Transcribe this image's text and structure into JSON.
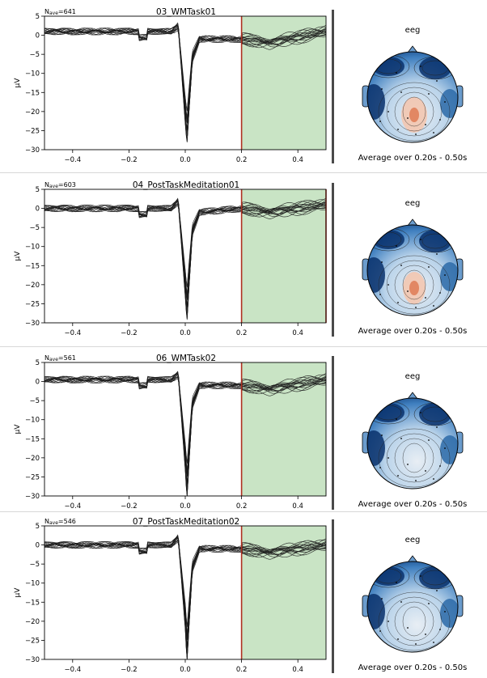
{
  "chart_data": [
    {
      "type": "line",
      "title": "03_WMTask01",
      "nave_prefix": "N",
      "nave_sub": "ave",
      "nave_value": "=641",
      "ylabel": "µV",
      "xlim": [
        -0.5,
        0.5
      ],
      "ylim": [
        -30,
        5
      ],
      "xticks": [
        -0.4,
        -0.2,
        0.0,
        0.2,
        0.4
      ],
      "xtick_labels": [
        "−0.4",
        "−0.2",
        "0.0",
        "0.2",
        "0.4"
      ],
      "yticks": [
        5,
        0,
        -5,
        -10,
        -15,
        -20,
        -25,
        -30
      ],
      "ytick_labels": [
        "5",
        "0",
        "−5",
        "−10",
        "−15",
        "−20",
        "−25",
        "−30"
      ],
      "shaded_window": [
        0.2,
        0.5
      ],
      "shade_color": "#c9e4c5",
      "marker_color": "#b03020",
      "vlines": [
        0.2
      ],
      "series_shape": {
        "t": [
          -0.5,
          -0.2,
          -0.05,
          -0.025,
          0.0,
          0.006,
          0.025,
          0.05,
          0.2,
          0.3,
          0.5
        ],
        "v": [
          1,
          1,
          1,
          2.5,
          -20,
          -25,
          -6,
          -1,
          -1,
          -2,
          1
        ]
      },
      "n_traces": 16,
      "topomap": {
        "label": "eeg",
        "caption": "Average over 0.20s - 0.50s"
      }
    },
    {
      "type": "line",
      "title": "04_PostTaskMeditation01",
      "nave_prefix": "N",
      "nave_sub": "ave",
      "nave_value": "=603",
      "ylabel": "µV",
      "xlim": [
        -0.5,
        0.5
      ],
      "ylim": [
        -30,
        5
      ],
      "xticks": [
        -0.4,
        -0.2,
        0.0,
        0.2,
        0.4
      ],
      "xtick_labels": [
        "−0.4",
        "−0.2",
        "0.0",
        "0.2",
        "0.4"
      ],
      "yticks": [
        5,
        0,
        -5,
        -10,
        -15,
        -20,
        -25,
        -30
      ],
      "ytick_labels": [
        "5",
        "0",
        "−5",
        "−10",
        "−15",
        "−20",
        "−25",
        "−30"
      ],
      "shaded_window": [
        0.2,
        0.5
      ],
      "shade_color": "#c9e4c5",
      "marker_color": "#b03020",
      "vlines": [
        0.2,
        0.5
      ],
      "series_shape": {
        "t": [
          -0.5,
          -0.2,
          -0.05,
          -0.025,
          0.0,
          0.006,
          0.025,
          0.05,
          0.2,
          0.3,
          0.5
        ],
        "v": [
          0,
          0,
          0,
          2,
          -20,
          -26,
          -6,
          -1,
          0,
          -1,
          1
        ]
      },
      "n_traces": 16,
      "topomap": {
        "label": "eeg",
        "caption": "Average over 0.20s - 0.50s"
      }
    },
    {
      "type": "line",
      "title": "06_WMTask02",
      "nave_prefix": "N",
      "nave_sub": "ave",
      "nave_value": "=561",
      "ylabel": "µV",
      "xlim": [
        -0.5,
        0.5
      ],
      "ylim": [
        -30,
        5
      ],
      "xticks": [
        -0.4,
        -0.2,
        0.0,
        0.2,
        0.4
      ],
      "xtick_labels": [
        "−0.4",
        "−0.2",
        "0.0",
        "0.2",
        "0.4"
      ],
      "yticks": [
        5,
        0,
        -5,
        -10,
        -15,
        -20,
        -25,
        -30
      ],
      "ytick_labels": [
        "5",
        "0",
        "−5",
        "−10",
        "−15",
        "−20",
        "−25",
        "−30"
      ],
      "shaded_window": [
        0.2,
        0.5
      ],
      "shade_color": "#c9e4c5",
      "marker_color": "#b03020",
      "vlines": [
        0.2
      ],
      "series_shape": {
        "t": [
          -0.5,
          -0.2,
          -0.05,
          -0.025,
          0.0,
          0.006,
          0.025,
          0.05,
          0.2,
          0.3,
          0.5
        ],
        "v": [
          0.5,
          0.5,
          0.5,
          2,
          -20,
          -27,
          -6,
          -1,
          -1,
          -2,
          0.5
        ]
      },
      "n_traces": 16,
      "topomap": {
        "label": "eeg",
        "caption": "Average over 0.20s - 0.50s"
      }
    },
    {
      "type": "line",
      "title": "07_PostTaskMeditation02",
      "nave_prefix": "N",
      "nave_sub": "ave",
      "nave_value": "=546",
      "ylabel": "µV",
      "xlim": [
        -0.5,
        0.5
      ],
      "ylim": [
        -30,
        5
      ],
      "xticks": [
        -0.4,
        -0.2,
        0.0,
        0.2,
        0.4
      ],
      "xtick_labels": [
        "−0.4",
        "−0.2",
        "0.0",
        "0.2",
        "0.4"
      ],
      "yticks": [
        5,
        0,
        -5,
        -10,
        -15,
        -20,
        -25,
        -30
      ],
      "ytick_labels": [
        "5",
        "0",
        "−5",
        "−10",
        "−15",
        "−20",
        "−25",
        "−30"
      ],
      "shaded_window": [
        0.2,
        0.5
      ],
      "shade_color": "#c9e4c5",
      "marker_color": "#b03020",
      "vlines": [
        0.2
      ],
      "series_shape": {
        "t": [
          -0.5,
          -0.2,
          -0.05,
          -0.025,
          0.0,
          0.006,
          0.025,
          0.05,
          0.2,
          0.3,
          0.5
        ],
        "v": [
          0,
          0,
          0,
          2,
          -19,
          -27,
          -6,
          -1,
          -1,
          -2,
          0
        ]
      },
      "n_traces": 16,
      "topomap": {
        "label": "eeg",
        "caption": "Average over 0.20s - 0.50s"
      }
    }
  ],
  "colors": {
    "trace": "#1a1a1a",
    "topomap_blue_dark": "#08306b",
    "topomap_blue_mid": "#3f7fbf",
    "topomap_light": "#e8eef4",
    "topomap_red": "#e0805a"
  }
}
